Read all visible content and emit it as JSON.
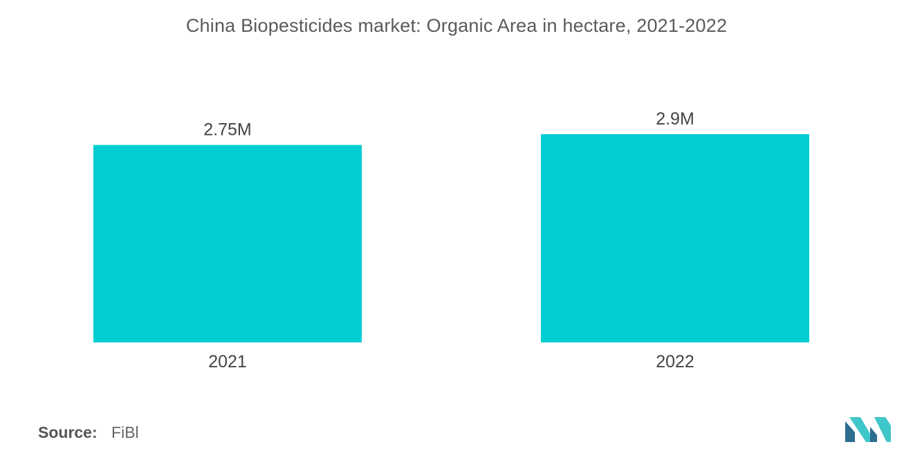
{
  "title": "China Biopesticides market: Organic Area in hectare, 2021-2022",
  "source": {
    "label": "Source:",
    "value": "FiBl"
  },
  "colors": {
    "bar": "#00ced1",
    "text": "#444444",
    "logo_dark": "#2b6c8f",
    "logo_light": "#3fc6c9"
  },
  "logo": {
    "icon": "mordor-intelligence-logo-icon"
  },
  "chart_data": {
    "type": "bar",
    "title": "China Biopesticides market: Organic Area in hectare, 2021-2022",
    "categories": [
      "2021",
      "2022"
    ],
    "values": [
      2750000,
      2900000
    ],
    "data_labels": [
      "2.75M",
      "2.9M"
    ],
    "xlabel": "",
    "ylabel": "",
    "ylim": [
      0,
      2900000
    ],
    "grid": false,
    "legend": "none"
  }
}
